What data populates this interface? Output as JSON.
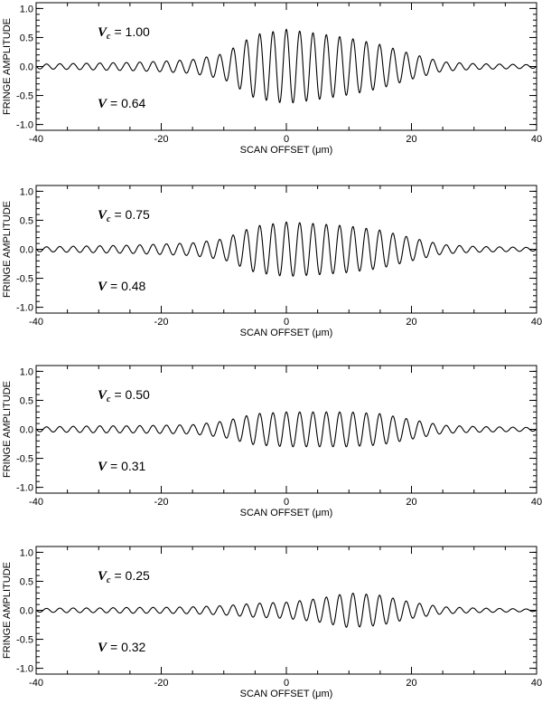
{
  "chart_data": [
    {
      "type": "line",
      "xlabel": "SCAN OFFSET (μm)",
      "ylabel": "FRINGE AMPLITUDE",
      "xlim": [
        -40,
        40
      ],
      "ylim": [
        -1.1,
        1.1
      ],
      "xticks": [
        "-40",
        "-20",
        "0",
        "20",
        "40"
      ],
      "yticks": [
        "1.0",
        "0.5",
        "0.0",
        "-0.5",
        "-1.0"
      ],
      "annotations": {
        "vc_label": "V",
        "vc_sub": "c",
        "vc_value": "= 1.00",
        "v_label": "V",
        "v_value": "= 0.64"
      },
      "series": [
        {
          "x": [
            -40,
            -35,
            -30,
            -25,
            -20,
            -15,
            -10,
            -5,
            0,
            5,
            10,
            15,
            20,
            25,
            30,
            35,
            40
          ],
          "envelope": [
            0.04,
            0.05,
            0.06,
            0.07,
            0.09,
            0.12,
            0.22,
            0.55,
            0.64,
            0.57,
            0.49,
            0.38,
            0.22,
            0.08,
            0.05,
            0.04,
            0.03
          ]
        }
      ]
    },
    {
      "type": "line",
      "xlabel": "SCAN OFFSET (μm)",
      "ylabel": "FRINGE AMPLITUDE",
      "xlim": [
        -40,
        40
      ],
      "ylim": [
        -1.1,
        1.1
      ],
      "xticks": [
        "-40",
        "-20",
        "0",
        "20",
        "40"
      ],
      "yticks": [
        "1.0",
        "0.5",
        "0.0",
        "-0.5",
        "-1.0"
      ],
      "annotations": {
        "vc_label": "V",
        "vc_sub": "c",
        "vc_value": "= 0.75",
        "v_label": "V",
        "v_value": "= 0.48"
      },
      "series": [
        {
          "x": [
            -40,
            -35,
            -30,
            -25,
            -20,
            -15,
            -10,
            -5,
            0,
            5,
            10,
            15,
            20,
            25,
            30,
            35,
            40
          ],
          "envelope": [
            0.04,
            0.05,
            0.06,
            0.07,
            0.09,
            0.11,
            0.18,
            0.4,
            0.47,
            0.44,
            0.4,
            0.33,
            0.2,
            0.08,
            0.05,
            0.04,
            0.03
          ]
        }
      ]
    },
    {
      "type": "line",
      "xlabel": "SCAN OFFSET (μm)",
      "ylabel": "FRINGE AMPLITUDE",
      "xlim": [
        -40,
        40
      ],
      "ylim": [
        -1.1,
        1.1
      ],
      "xticks": [
        "-40",
        "-20",
        "0",
        "20",
        "40"
      ],
      "yticks": [
        "1.0",
        "0.5",
        "0.0",
        "-0.5",
        "-1.0"
      ],
      "annotations": {
        "vc_label": "V",
        "vc_sub": "c",
        "vc_value": "= 0.50",
        "v_label": "V",
        "v_value": "= 0.31"
      },
      "series": [
        {
          "x": [
            -40,
            -35,
            -30,
            -25,
            -20,
            -15,
            -10,
            -5,
            0,
            5,
            10,
            15,
            20,
            25,
            30,
            35,
            40
          ],
          "envelope": [
            0.04,
            0.05,
            0.06,
            0.06,
            0.07,
            0.08,
            0.14,
            0.27,
            0.3,
            0.3,
            0.3,
            0.27,
            0.17,
            0.07,
            0.05,
            0.04,
            0.03
          ]
        }
      ]
    },
    {
      "type": "line",
      "xlabel": "SCAN OFFSET (μm)",
      "ylabel": "FRINGE AMPLITUDE",
      "xlim": [
        -40,
        40
      ],
      "ylim": [
        -1.1,
        1.1
      ],
      "xticks": [
        "-40",
        "-20",
        "0",
        "20",
        "40"
      ],
      "yticks": [
        "1.0",
        "0.5",
        "0.0",
        "-0.5",
        "-1.0"
      ],
      "annotations": {
        "vc_label": "V",
        "vc_sub": "c",
        "vc_value": "= 0.25",
        "v_label": "V",
        "v_value": "= 0.32"
      },
      "series": [
        {
          "x": [
            -40,
            -35,
            -30,
            -25,
            -20,
            -15,
            -10,
            -5,
            0,
            5,
            10,
            15,
            20,
            25,
            30,
            35,
            40
          ],
          "envelope": [
            0.03,
            0.04,
            0.04,
            0.05,
            0.05,
            0.06,
            0.08,
            0.12,
            0.14,
            0.2,
            0.3,
            0.26,
            0.14,
            0.06,
            0.04,
            0.03,
            0.02
          ]
        }
      ]
    }
  ]
}
